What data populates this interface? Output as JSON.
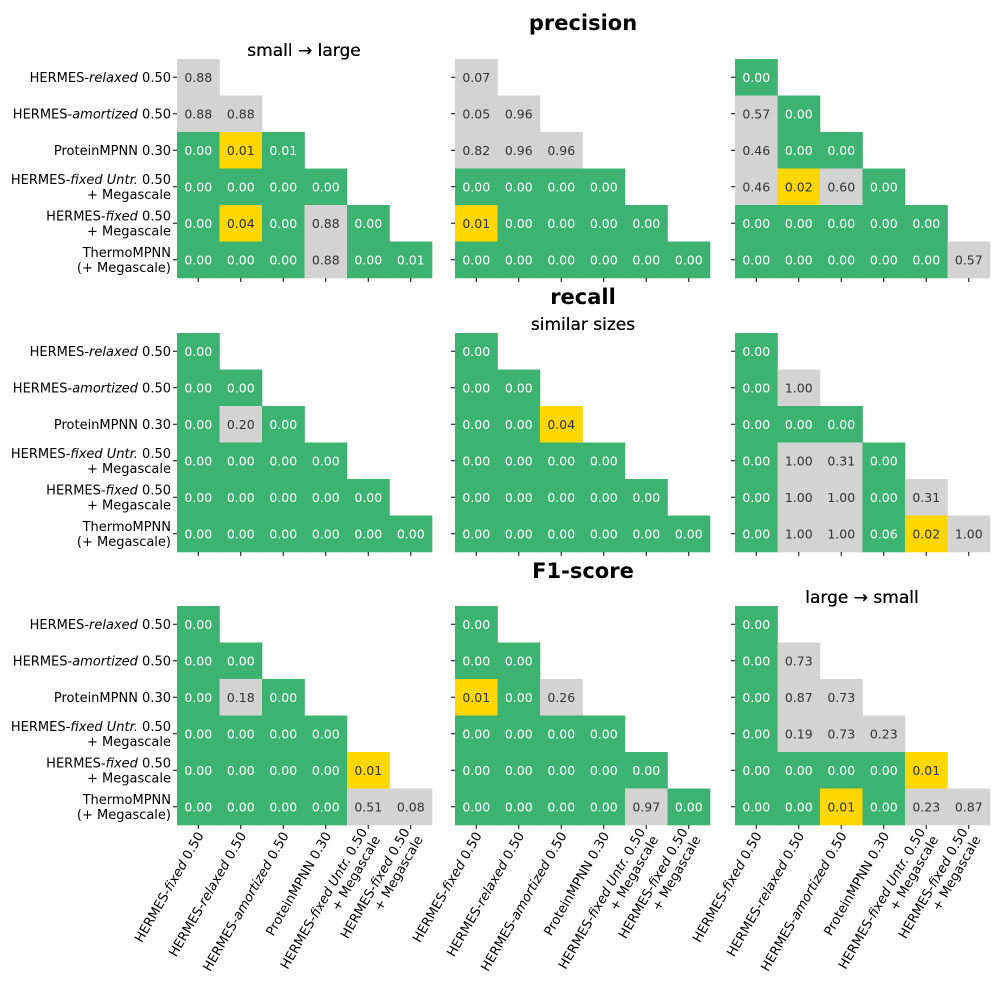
{
  "figure": {
    "section_titles": [
      "precision",
      "recall",
      "F1-score"
    ],
    "panel_titles": [
      "small → large",
      "similar sizes",
      "large → small"
    ]
  },
  "colors": {
    "green": "#3cb371",
    "gray": "#d3d3d3",
    "yellow": "#ffd700",
    "text_on_green": "#ffffff",
    "text_on_light": "#333333"
  },
  "chart_data": {
    "type": "heatmap",
    "row_labels": [
      [
        {
          "t": "HERMES-",
          "i": false
        },
        {
          "t": "relaxed",
          "i": true
        },
        {
          "t": " 0.50",
          "i": false
        }
      ],
      [
        {
          "t": "HERMES-",
          "i": false
        },
        {
          "t": "amortized",
          "i": true
        },
        {
          "t": " 0.50",
          "i": false
        }
      ],
      [
        {
          "t": "ProteinMPNN 0.30",
          "i": false
        }
      ],
      [
        {
          "t": "HERMES-",
          "i": false
        },
        {
          "t": "fixed Untr.",
          "i": true
        },
        {
          "t": " 0.50",
          "i": false
        },
        {
          "t": "\n+ Megascale",
          "i": false
        }
      ],
      [
        {
          "t": "HERMES-",
          "i": false
        },
        {
          "t": "fixed",
          "i": true
        },
        {
          "t": " 0.50",
          "i": false
        },
        {
          "t": "\n+ Megascale",
          "i": false
        }
      ],
      [
        {
          "t": "ThermoMPNN",
          "i": false
        },
        {
          "t": "\n(+ Megascale)",
          "i": false
        }
      ]
    ],
    "col_labels": [
      [
        {
          "t": "HERMES-",
          "i": false
        },
        {
          "t": "fixed",
          "i": true
        },
        {
          "t": " 0.50",
          "i": false
        }
      ],
      [
        {
          "t": "HERMES-",
          "i": false
        },
        {
          "t": "relaxed",
          "i": true
        },
        {
          "t": " 0.50",
          "i": false
        }
      ],
      [
        {
          "t": "HERMES-",
          "i": false
        },
        {
          "t": "amortized",
          "i": true
        },
        {
          "t": " 0.50",
          "i": false
        }
      ],
      [
        {
          "t": "ProteinMPNN 0.30",
          "i": false
        }
      ],
      [
        {
          "t": "HERMES-",
          "i": false
        },
        {
          "t": "fixed Untr.",
          "i": true
        },
        {
          "t": " 0.50",
          "i": false
        },
        {
          "t": "\n+ Megascale",
          "i": false
        }
      ],
      [
        {
          "t": "HERMES-",
          "i": false
        },
        {
          "t": "fixed",
          "i": true
        },
        {
          "t": " 0.50",
          "i": false
        },
        {
          "t": "\n+ Megascale",
          "i": false
        }
      ]
    ],
    "color_legend": {
      "g": "green",
      "n": "gray",
      "y": "yellow"
    },
    "sections": [
      {
        "metric": "precision",
        "panels": [
          {
            "title": "small → large",
            "values": [
              [
                "0.88"
              ],
              [
                "0.88",
                "0.88"
              ],
              [
                "0.00",
                "0.01",
                "0.01"
              ],
              [
                "0.00",
                "0.00",
                "0.00",
                "0.00"
              ],
              [
                "0.00",
                "0.04",
                "0.00",
                "0.88",
                "0.00"
              ],
              [
                "0.00",
                "0.00",
                "0.00",
                "0.88",
                "0.00",
                "0.01"
              ]
            ],
            "colors": [
              [
                "n"
              ],
              [
                "n",
                "n"
              ],
              [
                "g",
                "y",
                "g"
              ],
              [
                "g",
                "g",
                "g",
                "g"
              ],
              [
                "g",
                "y",
                "g",
                "n",
                "g"
              ],
              [
                "g",
                "g",
                "g",
                "n",
                "g",
                "g"
              ]
            ]
          },
          {
            "title": "similar sizes",
            "values": [
              [
                "0.07"
              ],
              [
                "0.05",
                "0.96"
              ],
              [
                "0.82",
                "0.96",
                "0.96"
              ],
              [
                "0.00",
                "0.00",
                "0.00",
                "0.00"
              ],
              [
                "0.01",
                "0.00",
                "0.00",
                "0.00",
                "0.00"
              ],
              [
                "0.00",
                "0.00",
                "0.00",
                "0.00",
                "0.00",
                "0.00"
              ]
            ],
            "colors": [
              [
                "n"
              ],
              [
                "n",
                "n"
              ],
              [
                "n",
                "n",
                "n"
              ],
              [
                "g",
                "g",
                "g",
                "g"
              ],
              [
                "y",
                "g",
                "g",
                "g",
                "g"
              ],
              [
                "g",
                "g",
                "g",
                "g",
                "g",
                "g"
              ]
            ]
          },
          {
            "title": "large → small",
            "values": [
              [
                "0.00"
              ],
              [
                "0.57",
                "0.00"
              ],
              [
                "0.46",
                "0.00",
                "0.00"
              ],
              [
                "0.46",
                "0.02",
                "0.60",
                "0.00"
              ],
              [
                "0.00",
                "0.00",
                "0.00",
                "0.00",
                "0.00"
              ],
              [
                "0.00",
                "0.00",
                "0.00",
                "0.00",
                "0.00",
                "0.57"
              ]
            ],
            "colors": [
              [
                "g"
              ],
              [
                "n",
                "g"
              ],
              [
                "n",
                "g",
                "g"
              ],
              [
                "n",
                "y",
                "n",
                "g"
              ],
              [
                "g",
                "g",
                "g",
                "g",
                "g"
              ],
              [
                "g",
                "g",
                "g",
                "g",
                "g",
                "n"
              ]
            ]
          }
        ]
      },
      {
        "metric": "recall",
        "panels": [
          {
            "title": "small → large",
            "values": [
              [
                "0.00"
              ],
              [
                "0.00",
                "0.00"
              ],
              [
                "0.00",
                "0.20",
                "0.00"
              ],
              [
                "0.00",
                "0.00",
                "0.00",
                "0.00"
              ],
              [
                "0.00",
                "0.00",
                "0.00",
                "0.00",
                "0.00"
              ],
              [
                "0.00",
                "0.00",
                "0.00",
                "0.00",
                "0.00",
                "0.00"
              ]
            ],
            "colors": [
              [
                "g"
              ],
              [
                "g",
                "g"
              ],
              [
                "g",
                "n",
                "g"
              ],
              [
                "g",
                "g",
                "g",
                "g"
              ],
              [
                "g",
                "g",
                "g",
                "g",
                "g"
              ],
              [
                "g",
                "g",
                "g",
                "g",
                "g",
                "g"
              ]
            ]
          },
          {
            "title": "similar sizes",
            "values": [
              [
                "0.00"
              ],
              [
                "0.00",
                "0.00"
              ],
              [
                "0.00",
                "0.00",
                "0.04"
              ],
              [
                "0.00",
                "0.00",
                "0.00",
                "0.00"
              ],
              [
                "0.00",
                "0.00",
                "0.00",
                "0.00",
                "0.00"
              ],
              [
                "0.00",
                "0.00",
                "0.00",
                "0.00",
                "0.00",
                "0.00"
              ]
            ],
            "colors": [
              [
                "g"
              ],
              [
                "g",
                "g"
              ],
              [
                "g",
                "g",
                "y"
              ],
              [
                "g",
                "g",
                "g",
                "g"
              ],
              [
                "g",
                "g",
                "g",
                "g",
                "g"
              ],
              [
                "g",
                "g",
                "g",
                "g",
                "g",
                "g"
              ]
            ]
          },
          {
            "title": "large → small",
            "values": [
              [
                "0.00"
              ],
              [
                "0.00",
                "1.00"
              ],
              [
                "0.00",
                "0.00",
                "0.00"
              ],
              [
                "0.00",
                "1.00",
                "0.31",
                "0.00"
              ],
              [
                "0.00",
                "1.00",
                "1.00",
                "0.00",
                "0.31"
              ],
              [
                "0.00",
                "1.00",
                "1.00",
                "0.06",
                "0.02",
                "1.00"
              ]
            ],
            "colors": [
              [
                "g"
              ],
              [
                "g",
                "n"
              ],
              [
                "g",
                "g",
                "g"
              ],
              [
                "g",
                "n",
                "n",
                "g"
              ],
              [
                "g",
                "n",
                "n",
                "g",
                "n"
              ],
              [
                "g",
                "n",
                "n",
                "g",
                "y",
                "n"
              ]
            ]
          }
        ]
      },
      {
        "metric": "F1-score",
        "panels": [
          {
            "title": "small → large",
            "values": [
              [
                "0.00"
              ],
              [
                "0.00",
                "0.00"
              ],
              [
                "0.00",
                "0.18",
                "0.00"
              ],
              [
                "0.00",
                "0.00",
                "0.00",
                "0.00"
              ],
              [
                "0.00",
                "0.00",
                "0.00",
                "0.00",
                "0.01"
              ],
              [
                "0.00",
                "0.00",
                "0.00",
                "0.00",
                "0.51",
                "0.08"
              ]
            ],
            "colors": [
              [
                "g"
              ],
              [
                "g",
                "g"
              ],
              [
                "g",
                "n",
                "g"
              ],
              [
                "g",
                "g",
                "g",
                "g"
              ],
              [
                "g",
                "g",
                "g",
                "g",
                "y"
              ],
              [
                "g",
                "g",
                "g",
                "g",
                "n",
                "n"
              ]
            ]
          },
          {
            "title": "similar sizes",
            "values": [
              [
                "0.00"
              ],
              [
                "0.00",
                "0.00"
              ],
              [
                "0.01",
                "0.00",
                "0.26"
              ],
              [
                "0.00",
                "0.00",
                "0.00",
                "0.00"
              ],
              [
                "0.00",
                "0.00",
                "0.00",
                "0.00",
                "0.00"
              ],
              [
                "0.00",
                "0.00",
                "0.00",
                "0.00",
                "0.97",
                "0.00"
              ]
            ],
            "colors": [
              [
                "g"
              ],
              [
                "g",
                "g"
              ],
              [
                "y",
                "g",
                "n"
              ],
              [
                "g",
                "g",
                "g",
                "g"
              ],
              [
                "g",
                "g",
                "g",
                "g",
                "g"
              ],
              [
                "g",
                "g",
                "g",
                "g",
                "n",
                "g"
              ]
            ]
          },
          {
            "title": "large → small",
            "values": [
              [
                "0.00"
              ],
              [
                "0.00",
                "0.73"
              ],
              [
                "0.00",
                "0.87",
                "0.73"
              ],
              [
                "0.00",
                "0.19",
                "0.73",
                "0.23"
              ],
              [
                "0.00",
                "0.00",
                "0.00",
                "0.00",
                "0.01"
              ],
              [
                "0.00",
                "0.00",
                "0.01",
                "0.00",
                "0.23",
                "0.87"
              ]
            ],
            "colors": [
              [
                "g"
              ],
              [
                "g",
                "n"
              ],
              [
                "g",
                "n",
                "n"
              ],
              [
                "g",
                "n",
                "n",
                "n"
              ],
              [
                "g",
                "g",
                "g",
                "g",
                "y"
              ],
              [
                "g",
                "g",
                "y",
                "g",
                "n",
                "n"
              ]
            ]
          }
        ]
      }
    ]
  }
}
